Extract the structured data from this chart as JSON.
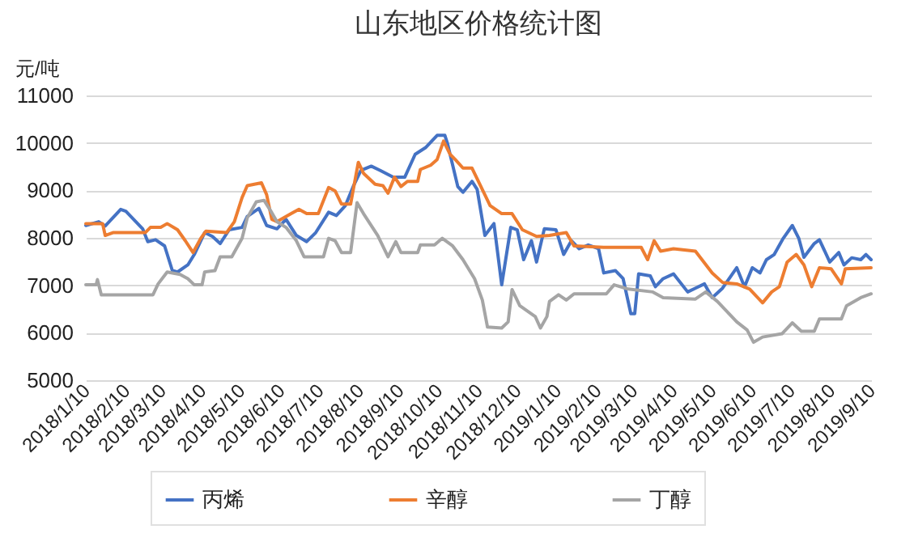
{
  "chart_data": {
    "type": "line",
    "title": "山东地区价格统计图",
    "ylabel": "元/吨",
    "legend": "bottom",
    "grid": "y",
    "line_style": "solid",
    "marker": "none",
    "xlim": [
      "2018-01-10",
      "2019-09-10"
    ],
    "xticks": [
      {
        "value": "2018-01-10",
        "label": "2018/1/10"
      },
      {
        "value": "2018-02-10",
        "label": "2018/2/10"
      },
      {
        "value": "2018-03-10",
        "label": "2018/3/10"
      },
      {
        "value": "2018-04-10",
        "label": "2018/4/10"
      },
      {
        "value": "2018-05-10",
        "label": "2018/5/10"
      },
      {
        "value": "2018-06-10",
        "label": "2018/6/10"
      },
      {
        "value": "2018-07-10",
        "label": "2018/7/10"
      },
      {
        "value": "2018-08-10",
        "label": "2018/8/10"
      },
      {
        "value": "2018-09-10",
        "label": "2018/9/10"
      },
      {
        "value": "2018-10-10",
        "label": "2018/10/10"
      },
      {
        "value": "2018-11-10",
        "label": "2018/11/10"
      },
      {
        "value": "2018-12-10",
        "label": "2018/12/10"
      },
      {
        "value": "2019-01-10",
        "label": "2019/1/10"
      },
      {
        "value": "2019-02-10",
        "label": "2019/2/10"
      },
      {
        "value": "2019-03-10",
        "label": "2019/3/10"
      },
      {
        "value": "2019-04-10",
        "label": "2019/4/10"
      },
      {
        "value": "2019-05-10",
        "label": "2019/5/10"
      },
      {
        "value": "2019-06-10",
        "label": "2019/6/10"
      },
      {
        "value": "2019-07-10",
        "label": "2019/7/10"
      },
      {
        "value": "2019-08-10",
        "label": "2019/8/10"
      },
      {
        "value": "2019-09-10",
        "label": "2019/9/10"
      }
    ],
    "ylim": [
      5000,
      11000
    ],
    "yticks": [
      5000,
      6000,
      7000,
      8000,
      9000,
      10000,
      11000
    ],
    "series": [
      {
        "name": "丙烯",
        "color": "#4472c4",
        "x": [
          "2018-01-10",
          "2018-01-20",
          "2018-01-25",
          "2018-02-06",
          "2018-02-10",
          "2018-02-23",
          "2018-02-27",
          "2018-03-05",
          "2018-03-12",
          "2018-03-18",
          "2018-03-22",
          "2018-03-30",
          "2018-04-04",
          "2018-04-12",
          "2018-04-18",
          "2018-04-24",
          "2018-05-01",
          "2018-05-11",
          "2018-05-15",
          "2018-05-24",
          "2018-05-30",
          "2018-06-07",
          "2018-06-14",
          "2018-06-22",
          "2018-06-30",
          "2018-07-07",
          "2018-07-17",
          "2018-07-23",
          "2018-07-30",
          "2018-08-05",
          "2018-08-11",
          "2018-08-19",
          "2018-08-26",
          "2018-09-05",
          "2018-09-14",
          "2018-09-22",
          "2018-09-30",
          "2018-10-09",
          "2018-10-15",
          "2018-10-17",
          "2018-10-25",
          "2018-10-29",
          "2018-11-05",
          "2018-11-09",
          "2018-11-15",
          "2018-11-22",
          "2018-11-28",
          "2018-12-05",
          "2018-12-10",
          "2018-12-15",
          "2018-12-21",
          "2018-12-25",
          "2018-12-31",
          "2019-01-09",
          "2019-01-15",
          "2019-01-21",
          "2019-01-27",
          "2019-02-03",
          "2019-02-11",
          "2019-02-15",
          "2019-02-24",
          "2019-03-02",
          "2019-03-08",
          "2019-03-11",
          "2019-03-14",
          "2019-03-23",
          "2019-03-27",
          "2019-04-02",
          "2019-04-10",
          "2019-04-21",
          "2019-04-27",
          "2019-05-04",
          "2019-05-10",
          "2019-05-18",
          "2019-05-29",
          "2019-06-04",
          "2019-06-10",
          "2019-06-16",
          "2019-06-21",
          "2019-06-27",
          "2019-07-04",
          "2019-07-11",
          "2019-07-16",
          "2019-07-20",
          "2019-07-28",
          "2019-08-01",
          "2019-08-09",
          "2019-08-16",
          "2019-08-20",
          "2019-08-26",
          "2019-09-02",
          "2019-09-06",
          "2019-09-10"
        ],
        "values": [
          8260,
          8340,
          8250,
          8600,
          8560,
          8190,
          7920,
          7960,
          7830,
          7310,
          7280,
          7430,
          7650,
          8110,
          8030,
          7880,
          8170,
          8220,
          8450,
          8620,
          8260,
          8190,
          8390,
          8050,
          7920,
          8110,
          8540,
          8470,
          8680,
          9080,
          9420,
          9510,
          9420,
          9280,
          9280,
          9760,
          9900,
          10160,
          10160,
          9990,
          9080,
          8960,
          9190,
          9020,
          8050,
          8300,
          7010,
          8220,
          8170,
          7540,
          7940,
          7490,
          8190,
          8170,
          7650,
          7940,
          7770,
          7850,
          7770,
          7260,
          7310,
          7140,
          6400,
          6400,
          7240,
          7200,
          6970,
          7140,
          7240,
          6860,
          6940,
          7030,
          6740,
          6940,
          7370,
          6970,
          7370,
          7260,
          7540,
          7650,
          7990,
          8260,
          7990,
          7590,
          7880,
          7960,
          7490,
          7690,
          7430,
          7580,
          7540,
          7650,
          7540
        ]
      },
      {
        "name": "辛醇",
        "color": "#ed7d31",
        "x": [
          "2018-01-10",
          "2018-01-23",
          "2018-01-25",
          "2018-01-31",
          "2018-02-25",
          "2018-03-01",
          "2018-03-09",
          "2018-03-14",
          "2018-03-22",
          "2018-03-28",
          "2018-04-03",
          "2018-04-09",
          "2018-04-13",
          "2018-04-29",
          "2018-05-05",
          "2018-05-11",
          "2018-05-15",
          "2018-05-26",
          "2018-05-30",
          "2018-06-03",
          "2018-06-07",
          "2018-06-18",
          "2018-06-24",
          "2018-06-30",
          "2018-07-09",
          "2018-07-17",
          "2018-07-22",
          "2018-07-27",
          "2018-08-03",
          "2018-08-09",
          "2018-08-13",
          "2018-08-22",
          "2018-08-28",
          "2018-09-01",
          "2018-09-06",
          "2018-09-11",
          "2018-09-16",
          "2018-09-24",
          "2018-09-26",
          "2018-10-04",
          "2018-10-09",
          "2018-10-14",
          "2018-10-19",
          "2018-10-23",
          "2018-10-29",
          "2018-11-05",
          "2018-11-11",
          "2018-11-19",
          "2018-11-28",
          "2018-12-06",
          "2018-12-14",
          "2018-12-25",
          "2019-01-04",
          "2019-01-17",
          "2019-01-23",
          "2019-02-15",
          "2019-03-16",
          "2019-03-21",
          "2019-03-26",
          "2019-03-31",
          "2019-04-10",
          "2019-04-27",
          "2019-05-10",
          "2019-05-18",
          "2019-05-29",
          "2019-06-08",
          "2019-06-18",
          "2019-06-25",
          "2019-07-01",
          "2019-07-07",
          "2019-07-14",
          "2019-07-20",
          "2019-07-26",
          "2019-08-01",
          "2019-08-10",
          "2019-08-18",
          "2019-08-21",
          "2019-09-10"
        ],
        "values": [
          8300,
          8300,
          8050,
          8110,
          8110,
          8220,
          8220,
          8300,
          8170,
          7940,
          7690,
          7990,
          8140,
          8110,
          8340,
          8850,
          9100,
          9160,
          8910,
          8390,
          8340,
          8510,
          8600,
          8510,
          8510,
          9060,
          8990,
          8710,
          8710,
          9590,
          9360,
          9130,
          9100,
          8940,
          9280,
          9080,
          9190,
          9190,
          9440,
          9530,
          9650,
          10040,
          9760,
          9650,
          9470,
          9470,
          9130,
          8680,
          8510,
          8510,
          8170,
          8030,
          8050,
          8110,
          7830,
          7800,
          7800,
          7540,
          7940,
          7720,
          7770,
          7720,
          7260,
          7060,
          7030,
          6920,
          6630,
          6860,
          6970,
          7490,
          7650,
          7430,
          6970,
          7370,
          7350,
          7030,
          7350,
          7370
        ]
      },
      {
        "name": "丁醇",
        "color": "#a5a5a5",
        "x": [
          "2018-01-10",
          "2018-01-18",
          "2018-01-19",
          "2018-01-22",
          "2018-03-03",
          "2018-03-07",
          "2018-03-14",
          "2018-03-24",
          "2018-03-30",
          "2018-04-04",
          "2018-04-10",
          "2018-04-12",
          "2018-04-20",
          "2018-04-24",
          "2018-05-03",
          "2018-05-11",
          "2018-05-15",
          "2018-05-22",
          "2018-05-28",
          "2018-06-03",
          "2018-06-07",
          "2018-06-14",
          "2018-06-22",
          "2018-06-28",
          "2018-07-13",
          "2018-07-17",
          "2018-07-22",
          "2018-07-27",
          "2018-08-03",
          "2018-08-08",
          "2018-08-13",
          "2018-08-24",
          "2018-09-01",
          "2018-09-07",
          "2018-09-11",
          "2018-09-24",
          "2018-09-26",
          "2018-10-07",
          "2018-10-13",
          "2018-10-21",
          "2018-10-29",
          "2018-11-07",
          "2018-11-13",
          "2018-11-17",
          "2018-11-28",
          "2018-12-03",
          "2018-12-06",
          "2018-12-12",
          "2018-12-24",
          "2018-12-28",
          "2019-01-02",
          "2019-01-04",
          "2019-01-11",
          "2019-01-17",
          "2019-01-23",
          "2019-02-17",
          "2019-02-23",
          "2019-03-06",
          "2019-03-25",
          "2019-04-02",
          "2019-04-27",
          "2019-05-05",
          "2019-05-14",
          "2019-05-29",
          "2019-06-06",
          "2019-06-11",
          "2019-06-18",
          "2019-07-03",
          "2019-07-11",
          "2019-07-18",
          "2019-07-28",
          "2019-08-01",
          "2019-08-18",
          "2019-08-22",
          "2019-09-02",
          "2019-09-10"
        ],
        "values": [
          7010,
          7010,
          7120,
          6800,
          6800,
          7030,
          7280,
          7230,
          7140,
          7010,
          7010,
          7280,
          7310,
          7600,
          7600,
          7990,
          8420,
          8760,
          8790,
          8530,
          8340,
          8220,
          7940,
          7600,
          7600,
          7990,
          7940,
          7690,
          7690,
          8740,
          8510,
          8050,
          7600,
          7920,
          7690,
          7690,
          7850,
          7850,
          7990,
          7830,
          7540,
          7140,
          6690,
          6120,
          6100,
          6230,
          6910,
          6570,
          6340,
          6100,
          6340,
          6660,
          6800,
          6690,
          6820,
          6820,
          7010,
          6920,
          6860,
          6740,
          6710,
          6860,
          6660,
          6230,
          6060,
          5800,
          5910,
          5980,
          6210,
          6030,
          6030,
          6290,
          6290,
          6570,
          6740,
          6820
        ]
      }
    ]
  }
}
